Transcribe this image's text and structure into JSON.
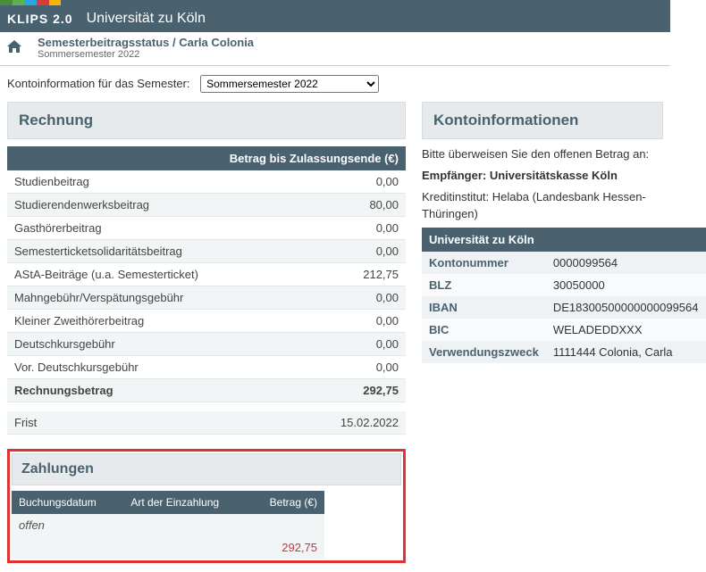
{
  "topstrip_colors": [
    "#4b8b3b",
    "#5fb04f",
    "#2aa6de",
    "#d93b3b",
    "#f7b500",
    "#4a6270"
  ],
  "topstrip_widths": [
    "20px",
    "20px",
    "20px",
    "20px",
    "20px",
    "1000px"
  ],
  "header": {
    "logo": "KLIPS 2.0",
    "uni": "Universität zu Köln"
  },
  "breadcrumb": {
    "title": "Semesterbeitragsstatus / Carla Colonia",
    "sub": "Sommersemester 2022"
  },
  "selector": {
    "label": "Kontoinformation für das Semester:",
    "value": "Sommersemester 2022"
  },
  "bill": {
    "title": "Rechnung",
    "header": "Betrag bis Zulassungsende (€)",
    "rows": [
      {
        "label": "Studienbeitrag",
        "value": "0,00"
      },
      {
        "label": "Studierendenwerksbeitrag",
        "value": "80,00"
      },
      {
        "label": "Gasthörerbeitrag",
        "value": "0,00"
      },
      {
        "label": "Semesterticketsolidaritätsbeitrag",
        "value": "0,00"
      },
      {
        "label": "AStA-Beiträge (u.a. Semesterticket)",
        "value": "212,75"
      },
      {
        "label": "Mahngebühr/Verspätungsgebühr",
        "value": "0,00"
      },
      {
        "label": "Kleiner Zweithörerbeitrag",
        "value": "0,00"
      },
      {
        "label": "Deutschkursgebühr",
        "value": "0,00"
      },
      {
        "label": "Vor. Deutschkursgebühr",
        "value": "0,00"
      }
    ],
    "total_label": "Rechnungsbetrag",
    "total_value": "292,75",
    "deadline_label": "Frist",
    "deadline_value": "15.02.2022"
  },
  "payments": {
    "title": "Zahlungen",
    "col1": "Buchungsdatum",
    "col2": "Art der Einzahlung",
    "col3": "Betrag (€)",
    "open_label": "offen",
    "open_value": "292,75"
  },
  "account": {
    "title": "Kontoinformationen",
    "intro": "Bitte überweisen Sie den offenen Betrag an:",
    "recipient_label": "Empfänger: Universitätskasse Köln",
    "bank_line": "Kreditinstitut: Helaba (Landesbank Hessen-Thüringen)",
    "table_header": "Universität zu Köln",
    "rows": [
      {
        "label": "Kontonummer",
        "value": "0000099564"
      },
      {
        "label": "BLZ",
        "value": "30050000"
      },
      {
        "label": "IBAN",
        "value": "DE18300500000000099564"
      },
      {
        "label": "BIC",
        "value": "WELADEDDXXX"
      },
      {
        "label": "Verwendungszweck",
        "value": "1111444 Colonia, Carla"
      }
    ]
  }
}
